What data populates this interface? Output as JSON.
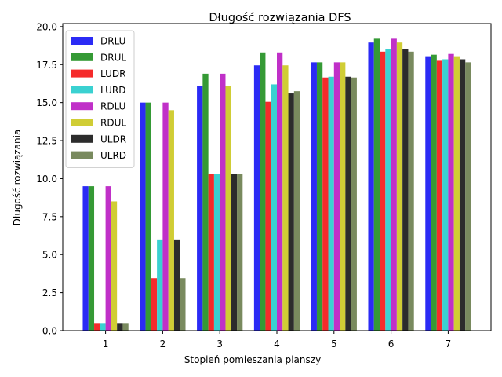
{
  "chart_data": {
    "type": "bar",
    "title": "Długość rozwiązania DFS",
    "xlabel": "Stopień pomieszania planszy",
    "ylabel": "Długość rozwiązania",
    "categories": [
      "1",
      "2",
      "3",
      "4",
      "5",
      "6",
      "7"
    ],
    "ylim": [
      0,
      20.2
    ],
    "yticks": [
      "0.0",
      "2.5",
      "5.0",
      "7.5",
      "10.0",
      "12.5",
      "15.0",
      "17.5",
      "20.0"
    ],
    "grid": false,
    "legend_position": "top-left",
    "series": [
      {
        "name": "DRLU",
        "color": "#2b2bf5",
        "values": [
          9.5,
          15.0,
          16.1,
          17.45,
          17.65,
          18.95,
          18.05
        ]
      },
      {
        "name": "DRUL",
        "color": "#359a35",
        "values": [
          9.5,
          15.0,
          16.9,
          18.3,
          17.65,
          19.2,
          18.15
        ]
      },
      {
        "name": "LUDR",
        "color": "#f52b2b",
        "values": [
          0.5,
          3.45,
          10.3,
          15.05,
          16.65,
          18.35,
          17.75
        ]
      },
      {
        "name": "LURD",
        "color": "#3ad1d1",
        "values": [
          0.5,
          6.0,
          10.3,
          16.2,
          16.7,
          18.5,
          17.85
        ]
      },
      {
        "name": "RDLU",
        "color": "#c030c8",
        "values": [
          9.5,
          15.0,
          16.9,
          18.3,
          17.65,
          19.2,
          18.2
        ]
      },
      {
        "name": "RDUL",
        "color": "#d0cd35",
        "values": [
          8.5,
          14.5,
          16.1,
          17.45,
          17.65,
          18.95,
          18.05
        ]
      },
      {
        "name": "ULDR",
        "color": "#2c2c2c",
        "values": [
          0.5,
          6.0,
          10.3,
          15.6,
          16.7,
          18.5,
          17.85
        ]
      },
      {
        "name": "ULRD",
        "color": "#798a5e",
        "values": [
          0.5,
          3.45,
          10.3,
          15.75,
          16.65,
          18.35,
          17.65
        ]
      }
    ]
  }
}
